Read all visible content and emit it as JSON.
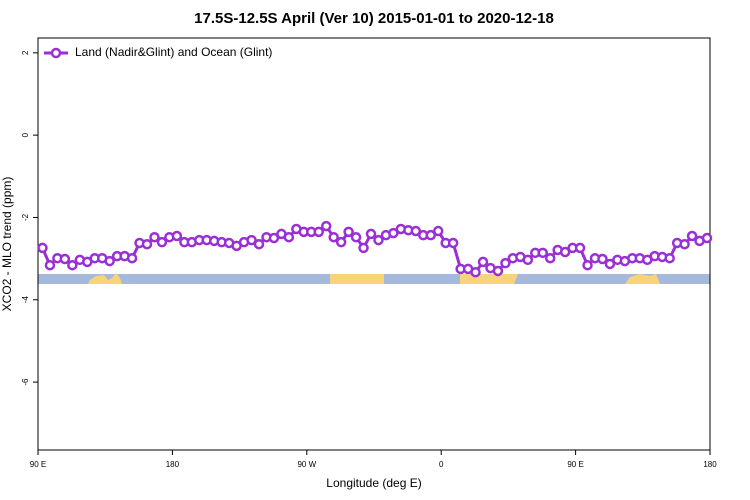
{
  "chart_data": {
    "type": "line",
    "title": "17.5S-12.5S April (Ver 10)   2015-01-01 to 2020-12-18",
    "xlabel": "Longitude (deg E)",
    "ylabel": "XCO2 - MLO trend (ppm)",
    "x": [
      93,
      98,
      103,
      108,
      113,
      118,
      123,
      128,
      133,
      138,
      143,
      148,
      153,
      158,
      163,
      168,
      173,
      178,
      183,
      188,
      193,
      198,
      203,
      208,
      213,
      218,
      223,
      228,
      233,
      238,
      243,
      248,
      253,
      258,
      263,
      268,
      273,
      278,
      283,
      288,
      293,
      298,
      303,
      308,
      313,
      318,
      323,
      328,
      333,
      338,
      343,
      348,
      353,
      358,
      363,
      368,
      373,
      378,
      383,
      388,
      393,
      398,
      403,
      408,
      413,
      418,
      423,
      428,
      433,
      438,
      443,
      448,
      453,
      458,
      463,
      468,
      473,
      478,
      483,
      488,
      493,
      498,
      503,
      508,
      513,
      518,
      523,
      528,
      533,
      538
    ],
    "series": [
      {
        "name": "Land (Nadir&Glint) and Ocean (Glint)",
        "color": "#9a2fd6",
        "values": [
          -2.74,
          -3.16,
          -2.99,
          -3.01,
          -3.16,
          -3.03,
          -3.08,
          -2.99,
          -2.99,
          -3.06,
          -2.94,
          -2.94,
          -2.99,
          -2.62,
          -2.65,
          -2.48,
          -2.6,
          -2.48,
          -2.45,
          -2.6,
          -2.6,
          -2.55,
          -2.55,
          -2.57,
          -2.6,
          -2.62,
          -2.69,
          -2.6,
          -2.55,
          -2.65,
          -2.48,
          -2.5,
          -2.4,
          -2.48,
          -2.28,
          -2.35,
          -2.35,
          -2.35,
          -2.21,
          -2.48,
          -2.6,
          -2.35,
          -2.48,
          -2.74,
          -2.4,
          -2.55,
          -2.43,
          -2.38,
          -2.28,
          -2.31,
          -2.33,
          -2.43,
          -2.43,
          -2.33,
          -2.62,
          -2.62,
          -3.25,
          -3.25,
          -3.33,
          -3.08,
          -3.23,
          -3.3,
          -3.11,
          -2.99,
          -2.96,
          -3.03,
          -2.86,
          -2.86,
          -2.99,
          -2.79,
          -2.84,
          -2.74,
          -2.74,
          -3.16,
          -2.99,
          -3.01,
          -3.13,
          -3.03,
          -3.06,
          -2.99,
          -2.99,
          -3.03,
          -2.94,
          -2.96,
          -2.99,
          -2.62,
          -2.65,
          -2.45,
          -2.57,
          -2.5
        ]
      }
    ],
    "xlim": [
      90,
      540
    ],
    "xticks": [
      {
        "value": 90,
        "label": "90 E"
      },
      {
        "value": 180,
        "label": "180"
      },
      {
        "value": 270,
        "label": "90 W"
      },
      {
        "value": 360,
        "label": "0"
      },
      {
        "value": 450,
        "label": "90 E"
      },
      {
        "value": 540,
        "label": "180"
      }
    ],
    "ylim": [
      -7.65,
      2.36
    ],
    "yticks": [
      2,
      0,
      -2,
      -4,
      -6
    ],
    "legend": "top-left"
  }
}
